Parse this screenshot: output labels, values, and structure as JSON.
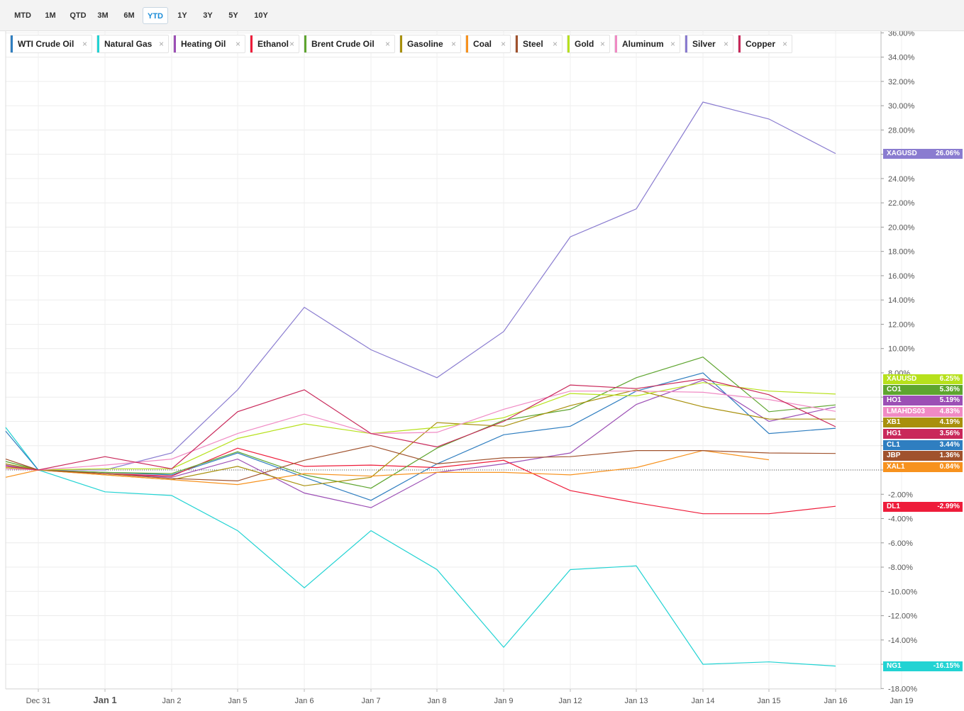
{
  "toolbar": {
    "ranges": [
      {
        "label": "MTD",
        "active": false
      },
      {
        "label": "1M",
        "active": false
      },
      {
        "label": "QTD",
        "active": false
      },
      {
        "label": "3M",
        "active": false
      },
      {
        "label": "6M",
        "active": false
      },
      {
        "label": "YTD",
        "active": true
      },
      {
        "label": "1Y",
        "active": false
      },
      {
        "label": "3Y",
        "active": false
      },
      {
        "label": "5Y",
        "active": false
      },
      {
        "label": "10Y",
        "active": false
      }
    ]
  },
  "legend": {
    "close_glyph": "×",
    "items": [
      {
        "label": "WTI Crude Oil",
        "color": "#2f7ec0"
      },
      {
        "label": "Natural Gas",
        "color": "#22d3d3"
      },
      {
        "label": "Heating Oil",
        "color": "#9c4fb5"
      },
      {
        "label": "Ethanol",
        "color": "#ee1c3a"
      },
      {
        "label": "Brent Crude Oil",
        "color": "#5ea52f"
      },
      {
        "label": "Gasoline",
        "color": "#a8900c"
      },
      {
        "label": "Coal",
        "color": "#f7921e"
      },
      {
        "label": "Steel",
        "color": "#a0522d"
      },
      {
        "label": "Gold",
        "color": "#b7e11c"
      },
      {
        "label": "Aluminum",
        "color": "#f08ac4"
      },
      {
        "label": "Silver",
        "color": "#8a7cd0"
      },
      {
        "label": "Copper",
        "color": "#c9285a"
      }
    ]
  },
  "chart_data": {
    "type": "line",
    "x": [
      "Dec 31",
      "Jan 1",
      "Jan 2",
      "Jan 5",
      "Jan 6",
      "Jan 7",
      "Jan 8",
      "Jan 9",
      "Jan 12",
      "Jan 13",
      "Jan 14",
      "Jan 15",
      "Jan 16",
      "Jan 19"
    ],
    "x_ticks": [
      "Dec 31",
      "Jan 1",
      "Jan 2",
      "Jan 5",
      "Jan 6",
      "Jan 7",
      "Jan 8",
      "Jan 9",
      "Jan 12",
      "Jan 13",
      "Jan 14",
      "Jan 15",
      "Jan 16",
      "Jan 19"
    ],
    "y_unit": "%",
    "ylim": [
      -18,
      36
    ],
    "y_ticks": [
      "36.00%",
      "34.00%",
      "32.00%",
      "30.00%",
      "28.00%",
      "26.00%",
      "24.00%",
      "22.00%",
      "20.00%",
      "18.00%",
      "16.00%",
      "14.00%",
      "12.00%",
      "10.00%",
      "8.00%",
      "6.00%",
      "4.00%",
      "2.00%",
      "0.00%",
      "-2.00%",
      "-4.00%",
      "-6.00%",
      "-8.00%",
      "-10.00%",
      "-12.00%",
      "-14.00%",
      "-16.00%",
      "-18.00%"
    ],
    "y_tick_values": [
      36,
      34,
      32,
      30,
      28,
      26,
      24,
      22,
      20,
      18,
      16,
      14,
      12,
      10,
      8,
      6,
      4,
      2,
      0,
      -2,
      -4,
      -6,
      -8,
      -10,
      -12,
      -14,
      -16,
      -18
    ],
    "y_tick_hidden": [
      "6.00%",
      "4.00%",
      "2.00%",
      "0.00%",
      "-16.00%"
    ],
    "grid": true,
    "zero_line": "dotted",
    "pre_start_values": {
      "Silver": 0.2,
      "Natural Gas": 3.5,
      "WTI Crude Oil": 3.2,
      "Copper": 0.3,
      "Brent Crude Oil": 0.7,
      "Gasoline": 0.5,
      "Coal": -0.6,
      "Steel": 0.9,
      "Heating Oil": 0.4,
      "Ethanol": 0.2,
      "Gold": 0.2,
      "Aluminum": 0.1
    },
    "series": [
      {
        "name": "Silver",
        "color": "#8a7cd0",
        "values": [
          0,
          0,
          1.4,
          6.6,
          13.4,
          9.9,
          7.6,
          11.4,
          19.2,
          21.5,
          30.3,
          28.9,
          26.06,
          null
        ]
      },
      {
        "name": "Natural Gas",
        "color": "#22d3d3",
        "values": [
          0,
          -1.8,
          -2.1,
          -5.0,
          -9.7,
          -5.0,
          -8.2,
          -14.6,
          -8.2,
          -7.9,
          -16.0,
          -15.8,
          -16.15,
          null
        ]
      },
      {
        "name": "WTI Crude Oil",
        "color": "#2f7ec0",
        "values": [
          0,
          -0.2,
          -0.4,
          1.4,
          -0.6,
          -2.5,
          0.5,
          2.9,
          3.6,
          6.5,
          8.0,
          3.0,
          3.44,
          null
        ]
      },
      {
        "name": "Heating Oil",
        "color": "#9c4fb5",
        "values": [
          0,
          -0.3,
          -0.6,
          0.9,
          -1.9,
          -3.1,
          -0.2,
          0.5,
          1.4,
          5.4,
          7.4,
          4.0,
          5.19,
          null
        ]
      },
      {
        "name": "Ethanol",
        "color": "#ee1c3a",
        "values": [
          0,
          -0.3,
          -0.5,
          1.8,
          0.3,
          0.4,
          0.2,
          0.8,
          -1.7,
          -2.7,
          -3.6,
          -3.6,
          -2.99,
          null
        ]
      },
      {
        "name": "Brent Crude Oil",
        "color": "#5ea52f",
        "values": [
          0,
          -0.2,
          -0.3,
          1.5,
          -0.4,
          -1.5,
          1.8,
          4.1,
          5.0,
          7.6,
          9.3,
          4.8,
          5.36,
          null
        ]
      },
      {
        "name": "Gasoline",
        "color": "#a8900c",
        "values": [
          0,
          -0.4,
          -0.8,
          0.3,
          -1.3,
          -0.6,
          3.9,
          3.6,
          5.3,
          6.6,
          5.2,
          4.2,
          4.19,
          null
        ]
      },
      {
        "name": "Coal",
        "color": "#f7921e",
        "values": [
          0,
          -0.4,
          -0.8,
          -1.2,
          -0.3,
          -0.5,
          -0.2,
          -0.2,
          -0.4,
          0.2,
          1.6,
          0.84,
          null,
          null
        ]
      },
      {
        "name": "Steel",
        "color": "#a0522d",
        "values": [
          0,
          -0.3,
          -0.7,
          -0.9,
          0.8,
          2.0,
          0.5,
          1.0,
          1.1,
          1.6,
          1.6,
          1.4,
          1.36,
          null
        ]
      },
      {
        "name": "Gold",
        "color": "#b7e11c",
        "values": [
          0,
          0.1,
          0.1,
          2.6,
          3.8,
          3.0,
          3.5,
          4.3,
          6.3,
          6.1,
          7.2,
          6.5,
          6.25,
          null
        ]
      },
      {
        "name": "Aluminum",
        "color": "#f08ac4",
        "values": [
          0,
          0.4,
          0.9,
          3.0,
          4.6,
          3.0,
          3.1,
          5.0,
          6.5,
          6.5,
          6.4,
          5.8,
          4.83,
          null
        ]
      },
      {
        "name": "Copper",
        "color": "#c9285a",
        "values": [
          0,
          1.1,
          0.1,
          4.8,
          6.6,
          3.0,
          1.9,
          4.0,
          7.0,
          6.7,
          7.5,
          6.2,
          3.56,
          null
        ]
      }
    ],
    "end_labels": [
      {
        "code": "XAGUSD",
        "value": "26.06%",
        "color": "#8a7cd0",
        "y": 26.06
      },
      {
        "code": "XAUUSD",
        "value": "6.25%",
        "color": "#b7e11c",
        "y": 7.5
      },
      {
        "code": "CO1",
        "value": "5.36%",
        "color": "#5ea52f",
        "y": 6.6
      },
      {
        "code": "HO1",
        "value": "5.19%",
        "color": "#9c4fb5",
        "y": 5.7
      },
      {
        "code": "LMAHDS03",
        "value": "4.83%",
        "color": "#f08ac4",
        "y": 4.8
      },
      {
        "code": "XB1",
        "value": "4.19%",
        "color": "#a8900c",
        "y": 3.9
      },
      {
        "code": "HG1",
        "value": "3.56%",
        "color": "#c9285a",
        "y": 2.95
      },
      {
        "code": "CL1",
        "value": "3.44%",
        "color": "#2f7ec0",
        "y": 2.05
      },
      {
        "code": "JBP",
        "value": "1.36%",
        "color": "#a0522d",
        "y": 1.15
      },
      {
        "code": "XAL1",
        "value": "0.84%",
        "color": "#f7921e",
        "y": 0.25
      },
      {
        "code": "DL1",
        "value": "-2.99%",
        "color": "#ee1c3a",
        "y": -3.05
      },
      {
        "code": "NG1",
        "value": "-16.15%",
        "color": "#22d3d3",
        "y": -16.15
      }
    ]
  }
}
